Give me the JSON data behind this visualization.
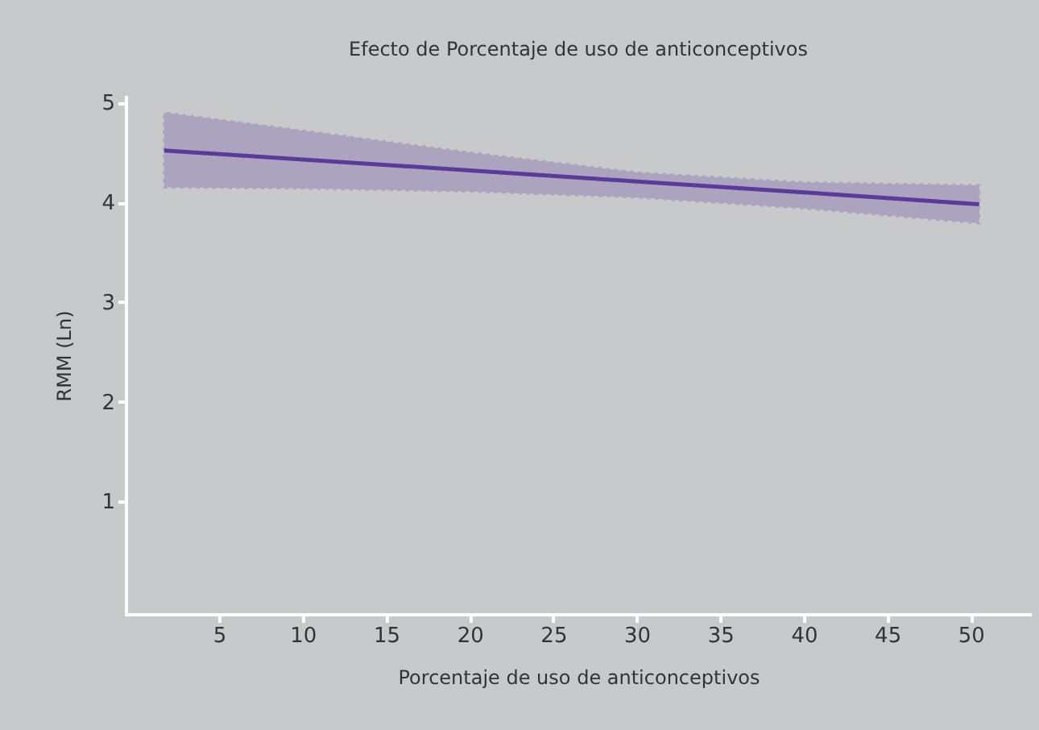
{
  "chart_data": {
    "type": "line",
    "title": "Efecto de Porcentaje de uso de anticonceptivos",
    "xlabel": "Porcentaje de uso de anticonceptivos",
    "ylabel": "RMM (Ln)",
    "x": [
      1.7,
      10,
      20,
      30,
      40,
      50.5
    ],
    "series": [
      {
        "color": "#5a3a9a",
        "values": [
          4.52,
          4.43,
          4.32,
          4.21,
          4.1,
          3.98
        ],
        "lower": [
          4.15,
          4.14,
          4.11,
          4.05,
          3.94,
          3.79
        ],
        "upper": [
          4.9,
          4.72,
          4.5,
          4.3,
          4.2,
          4.17
        ]
      }
    ],
    "xlim": [
      -0.6,
      53.6
    ],
    "xticks": [
      5,
      10,
      15,
      20,
      25,
      30,
      35,
      40,
      45,
      50
    ],
    "ylim": [
      -0.13,
      5.06
    ],
    "yticks": [
      1,
      2,
      3,
      4,
      5
    ],
    "grid": false,
    "marker": "none",
    "line_style": "solid"
  }
}
